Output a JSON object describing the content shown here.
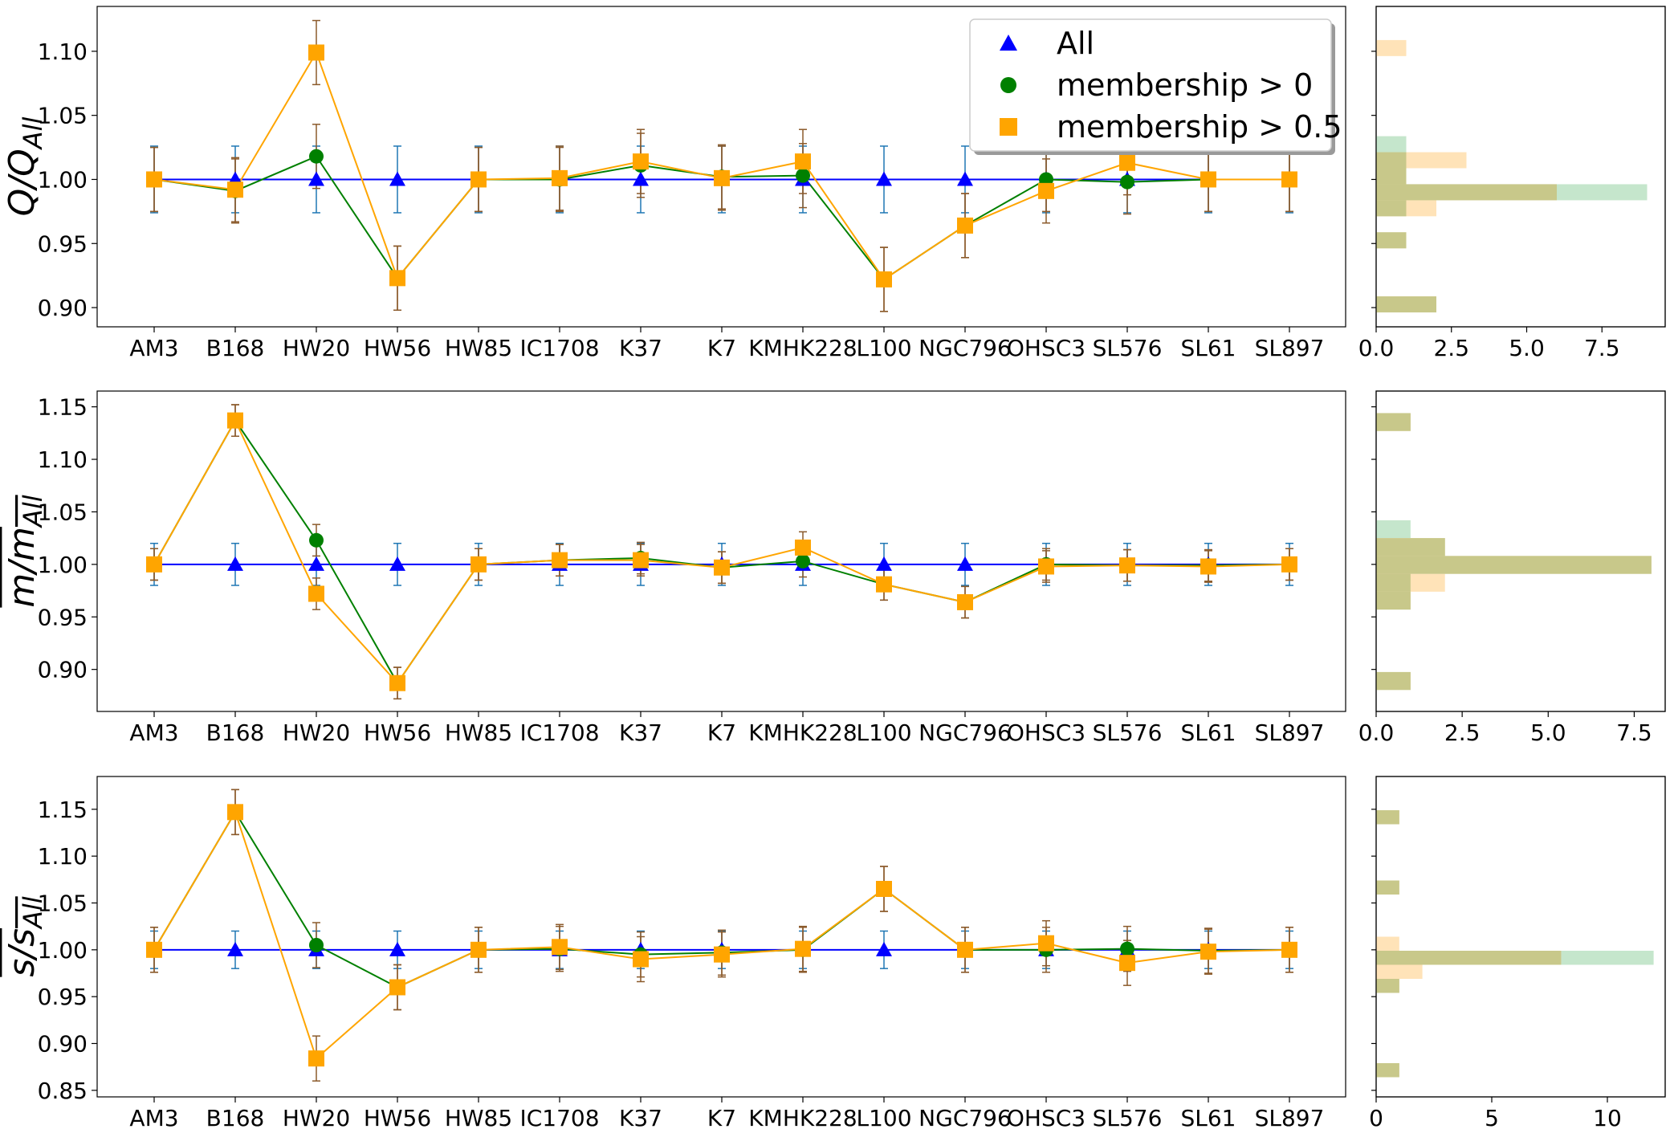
{
  "chart_data": [
    {
      "type": "line",
      "ylabel": "Q/Q_All",
      "ylabel_main": "Q/Q",
      "ylabel_sub": "All",
      "ylabel_overline": false,
      "categories": [
        "AM3",
        "B168",
        "HW20",
        "HW56",
        "HW85",
        "IC1708",
        "K37",
        "K7",
        "KMHK228",
        "L100",
        "NGC796",
        "OHSC3",
        "SL576",
        "SL61",
        "SL897"
      ],
      "ylim": [
        0.885,
        1.135
      ],
      "yticks": [
        0.9,
        0.95,
        1.0,
        1.05,
        1.1
      ],
      "ytick_labels": [
        "0.90",
        "0.95",
        "1.00",
        "1.05",
        "1.10"
      ],
      "series": [
        {
          "name": "All",
          "color": "#0000ff",
          "marker": "triangle",
          "values": [
            1,
            1,
            1,
            1,
            1,
            1,
            1,
            1,
            1,
            1,
            1,
            1,
            1,
            1,
            1
          ],
          "errors": [
            0.026,
            0.026,
            0.026,
            0.026,
            0.026,
            0.026,
            0.026,
            0.026,
            0.026,
            0.026,
            0.026,
            0.026,
            0.026,
            0.026,
            0.026
          ]
        },
        {
          "name": "membership > 0",
          "color": "#008000",
          "marker": "circle",
          "values": [
            1.0,
            0.991,
            1.018,
            0.923,
            1.0,
            1.0,
            1.011,
            1.002,
            1.003,
            0.922,
            0.964,
            1.0,
            0.998,
            1.0,
            1.0
          ],
          "errors": [
            0.025,
            0.025,
            0.025,
            0.025,
            0.025,
            0.025,
            0.025,
            0.025,
            0.025,
            0.025,
            0.025,
            0.025,
            0.025,
            0.025,
            0.025
          ]
        },
        {
          "name": "membership > 0.5",
          "color": "#ffa500",
          "marker": "square",
          "values": [
            1.0,
            0.992,
            1.099,
            0.923,
            1.0,
            1.001,
            1.014,
            1.001,
            1.014,
            0.922,
            0.964,
            0.991,
            1.013,
            1.0,
            1.0
          ],
          "errors": [
            0.025,
            0.025,
            0.025,
            0.025,
            0.025,
            0.025,
            0.025,
            0.025,
            0.025,
            0.025,
            0.025,
            0.025,
            0.025,
            0.025,
            0.025
          ]
        }
      ],
      "histogram": {
        "xlim": [
          0,
          9.6
        ],
        "xticks": [
          0,
          2.5,
          5.0,
          7.5
        ],
        "xtick_labels": [
          "0.0",
          "2.5",
          "5.0",
          "7.5"
        ],
        "bin_width": 0.0125,
        "green_counts": [
          {
            "y": 0.9025,
            "count": 2
          },
          {
            "y": 0.9525,
            "count": 1
          },
          {
            "y": 0.9775,
            "count": 1
          },
          {
            "y": 0.99,
            "count": 9
          },
          {
            "y": 1.0025,
            "count": 1
          },
          {
            "y": 1.015,
            "count": 1
          },
          {
            "y": 1.0275,
            "count": 1
          }
        ],
        "orange_counts": [
          {
            "y": 0.9025,
            "count": 2
          },
          {
            "y": 0.9525,
            "count": 1
          },
          {
            "y": 0.9775,
            "count": 2
          },
          {
            "y": 0.99,
            "count": 6
          },
          {
            "y": 1.0025,
            "count": 1
          },
          {
            "y": 1.015,
            "count": 3
          },
          {
            "y": 1.1025,
            "count": 1
          }
        ]
      }
    },
    {
      "type": "line",
      "ylabel": "m̄/m̄_All",
      "ylabel_main": "m/m",
      "ylabel_sub": "All",
      "ylabel_overline": true,
      "categories": [
        "AM3",
        "B168",
        "HW20",
        "HW56",
        "HW85",
        "IC1708",
        "K37",
        "K7",
        "KMHK228",
        "L100",
        "NGC796",
        "OHSC3",
        "SL576",
        "SL61",
        "SL897"
      ],
      "ylim": [
        0.86,
        1.165
      ],
      "yticks": [
        0.9,
        0.95,
        1.0,
        1.05,
        1.1,
        1.15
      ],
      "ytick_labels": [
        "0.90",
        "0.95",
        "1.00",
        "1.05",
        "1.10",
        "1.15"
      ],
      "series": [
        {
          "name": "All",
          "color": "#0000ff",
          "marker": "triangle",
          "values": [
            1,
            1,
            1,
            1,
            1,
            1,
            1,
            1,
            1,
            1,
            1,
            1,
            1,
            1,
            1
          ],
          "errors": [
            0.02,
            0.02,
            0.02,
            0.02,
            0.02,
            0.02,
            0.02,
            0.02,
            0.02,
            0.02,
            0.02,
            0.02,
            0.02,
            0.02,
            0.02
          ]
        },
        {
          "name": "membership > 0",
          "color": "#008000",
          "marker": "circle",
          "values": [
            1.0,
            1.137,
            1.023,
            0.887,
            1.0,
            1.004,
            1.006,
            0.997,
            1.003,
            0.981,
            0.964,
            1.0,
            0.999,
            0.999,
            1.0
          ],
          "errors": [
            0.015,
            0.015,
            0.015,
            0.015,
            0.015,
            0.015,
            0.015,
            0.015,
            0.015,
            0.015,
            0.015,
            0.015,
            0.015,
            0.015,
            0.015
          ]
        },
        {
          "name": "membership > 0.5",
          "color": "#ffa500",
          "marker": "square",
          "values": [
            1.0,
            1.137,
            0.972,
            0.887,
            1.0,
            1.004,
            1.004,
            0.997,
            1.016,
            0.981,
            0.964,
            0.998,
            0.999,
            0.998,
            1.0
          ],
          "errors": [
            0.015,
            0.015,
            0.015,
            0.015,
            0.015,
            0.015,
            0.015,
            0.015,
            0.015,
            0.015,
            0.015,
            0.015,
            0.015,
            0.015,
            0.015
          ]
        }
      ],
      "histogram": {
        "xlim": [
          0,
          8.4
        ],
        "xticks": [
          0,
          2.5,
          5.0,
          7.5
        ],
        "xtick_labels": [
          "0.0",
          "2.5",
          "5.0",
          "7.5"
        ],
        "bin_width": 0.017,
        "green_counts": [
          {
            "y": 0.889,
            "count": 1
          },
          {
            "y": 0.9655,
            "count": 1
          },
          {
            "y": 0.9825,
            "count": 1
          },
          {
            "y": 0.9995,
            "count": 8
          },
          {
            "y": 1.0165,
            "count": 2
          },
          {
            "y": 1.0335,
            "count": 1
          },
          {
            "y": 1.1355,
            "count": 1
          }
        ],
        "orange_counts": [
          {
            "y": 0.889,
            "count": 1
          },
          {
            "y": 0.9655,
            "count": 1
          },
          {
            "y": 0.9825,
            "count": 2
          },
          {
            "y": 0.9995,
            "count": 8
          },
          {
            "y": 1.0165,
            "count": 2
          },
          {
            "y": 1.1355,
            "count": 1
          }
        ]
      }
    },
    {
      "type": "line",
      "ylabel": "s̄/s̄_All",
      "ylabel_main": "s/s",
      "ylabel_sub": "All",
      "ylabel_overline": true,
      "categories": [
        "AM3",
        "B168",
        "HW20",
        "HW56",
        "HW85",
        "IC1708",
        "K37",
        "K7",
        "KMHK228",
        "L100",
        "NGC796",
        "OHSC3",
        "SL576",
        "SL61",
        "SL897"
      ],
      "ylim": [
        0.843,
        1.185
      ],
      "yticks": [
        0.85,
        0.9,
        0.95,
        1.0,
        1.05,
        1.1,
        1.15
      ],
      "ytick_labels": [
        "0.85",
        "0.90",
        "0.95",
        "1.00",
        "1.05",
        "1.10",
        "1.15"
      ],
      "series": [
        {
          "name": "All",
          "color": "#0000ff",
          "marker": "triangle",
          "values": [
            1,
            1,
            1,
            1,
            1,
            1,
            1,
            1,
            1,
            1,
            1,
            1,
            1,
            1,
            1
          ],
          "errors": [
            0.02,
            0.02,
            0.02,
            0.02,
            0.02,
            0.02,
            0.02,
            0.02,
            0.02,
            0.02,
            0.02,
            0.02,
            0.02,
            0.02,
            0.02
          ]
        },
        {
          "name": "membership > 0",
          "color": "#008000",
          "marker": "circle",
          "values": [
            1.0,
            1.147,
            1.005,
            0.96,
            1.0,
            1.001,
            0.995,
            0.997,
            1.0,
            1.065,
            1.0,
            1.0,
            1.001,
            0.999,
            1.0
          ],
          "errors": [
            0.024,
            0.024,
            0.024,
            0.024,
            0.024,
            0.024,
            0.024,
            0.024,
            0.024,
            0.024,
            0.024,
            0.024,
            0.024,
            0.024,
            0.024
          ]
        },
        {
          "name": "membership > 0.5",
          "color": "#ffa500",
          "marker": "square",
          "values": [
            1.0,
            1.147,
            0.884,
            0.96,
            1.0,
            1.003,
            0.99,
            0.995,
            1.001,
            1.065,
            1.0,
            1.007,
            0.986,
            0.998,
            1.0
          ],
          "errors": [
            0.024,
            0.024,
            0.024,
            0.024,
            0.024,
            0.024,
            0.024,
            0.024,
            0.024,
            0.024,
            0.024,
            0.024,
            0.024,
            0.024,
            0.024
          ]
        }
      ],
      "histogram": {
        "xlim": [
          0,
          12.5
        ],
        "xticks": [
          0,
          5,
          10
        ],
        "xtick_labels": [
          "0",
          "5",
          "10"
        ],
        "bin_width": 0.015,
        "green_counts": [
          {
            "y": 0.8715,
            "count": 1
          },
          {
            "y": 0.9615,
            "count": 1
          },
          {
            "y": 0.9915,
            "count": 12
          },
          {
            "y": 1.0665,
            "count": 1
          },
          {
            "y": 1.1415,
            "count": 1
          }
        ],
        "orange_counts": [
          {
            "y": 0.8715,
            "count": 1
          },
          {
            "y": 0.9615,
            "count": 1
          },
          {
            "y": 0.9765,
            "count": 2
          },
          {
            "y": 0.9915,
            "count": 8
          },
          {
            "y": 1.0065,
            "count": 1
          },
          {
            "y": 1.0665,
            "count": 1
          },
          {
            "y": 1.1415,
            "count": 1
          }
        ]
      }
    }
  ],
  "legend": {
    "placement": "upper right of top panel",
    "entries": [
      {
        "label": "All",
        "color": "#0000ff",
        "marker": "triangle"
      },
      {
        "label": "membership > 0",
        "color": "#008000",
        "marker": "circle"
      },
      {
        "label": "membership > 0.5",
        "color": "#ffa500",
        "marker": "square"
      }
    ]
  },
  "colors": {
    "all_series": "#0000ff",
    "member0_series": "#008000",
    "member05_series": "#ffa500",
    "errorbar_all": "#1f77b4",
    "errorbar_members": "#8b5a2b",
    "hist_green": "#bfe3c7",
    "hist_orange": "#ffe0b0",
    "hist_overlap": "#c8c88a"
  }
}
